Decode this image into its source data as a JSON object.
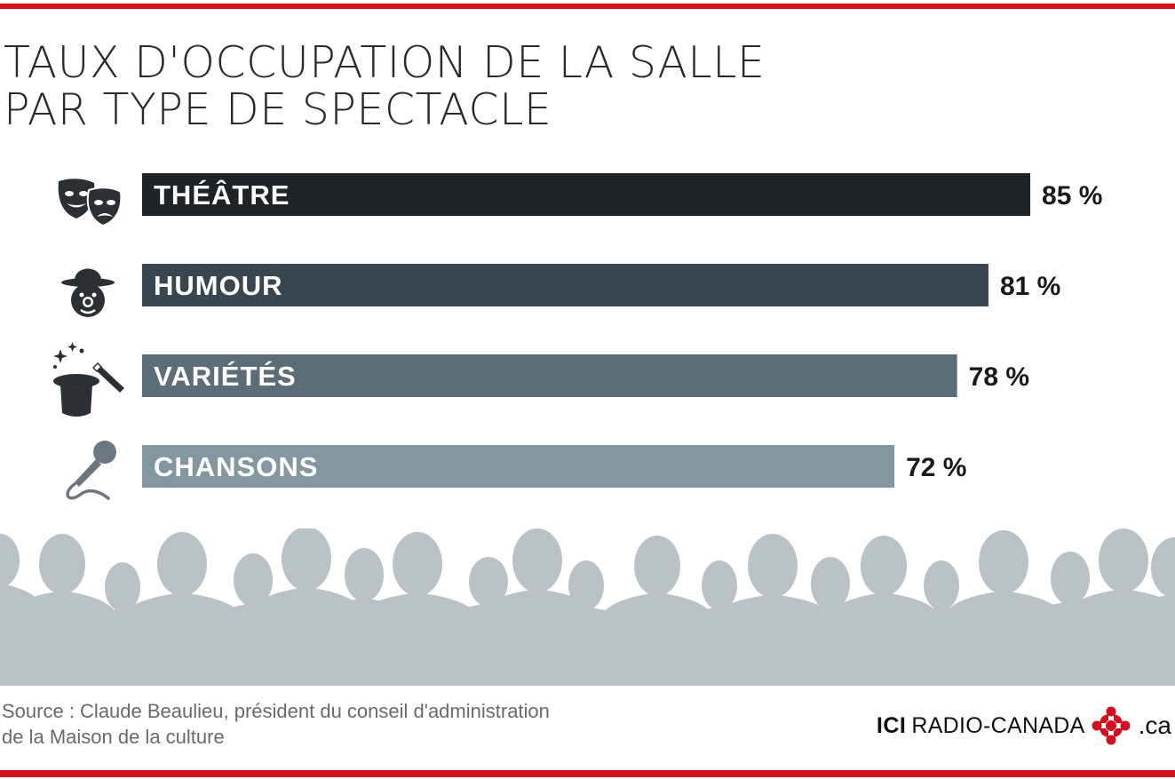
{
  "title_lines": [
    "TAUX D'OCCUPATION DE LA SALLE",
    "PAR TYPE DE SPECTACLE"
  ],
  "chart_data": {
    "type": "bar",
    "orientation": "horizontal",
    "title": "TAUX D'OCCUPATION DE LA SALLE PAR TYPE DE SPECTACLE",
    "categories": [
      "THÉÂTRE",
      "HUMOUR",
      "VARIÉTÉS",
      "CHANSONS"
    ],
    "values": [
      85,
      81,
      78,
      72
    ],
    "value_labels": [
      "85 %",
      "81 %",
      "78 %",
      "72 %"
    ],
    "unit": "%",
    "icons": [
      "theatre-masks-icon",
      "clown-icon",
      "magic-hat-icon",
      "microphone-icon"
    ],
    "colors": [
      "#1e2327",
      "#394650",
      "#5d6d78",
      "#8497a1"
    ],
    "grid": false,
    "legend": "none"
  },
  "colors": {
    "accent": "#d0101c",
    "crowd": "#b9c2c6",
    "icon": "#2c2f33"
  },
  "source": {
    "line1": "Source : Claude Beaulieu, président du conseil d'administration",
    "line2": "de la Maison de la culture"
  },
  "logo": {
    "ici": "ICI",
    "name": "RADIO-CANADA",
    "domain": ".ca"
  }
}
